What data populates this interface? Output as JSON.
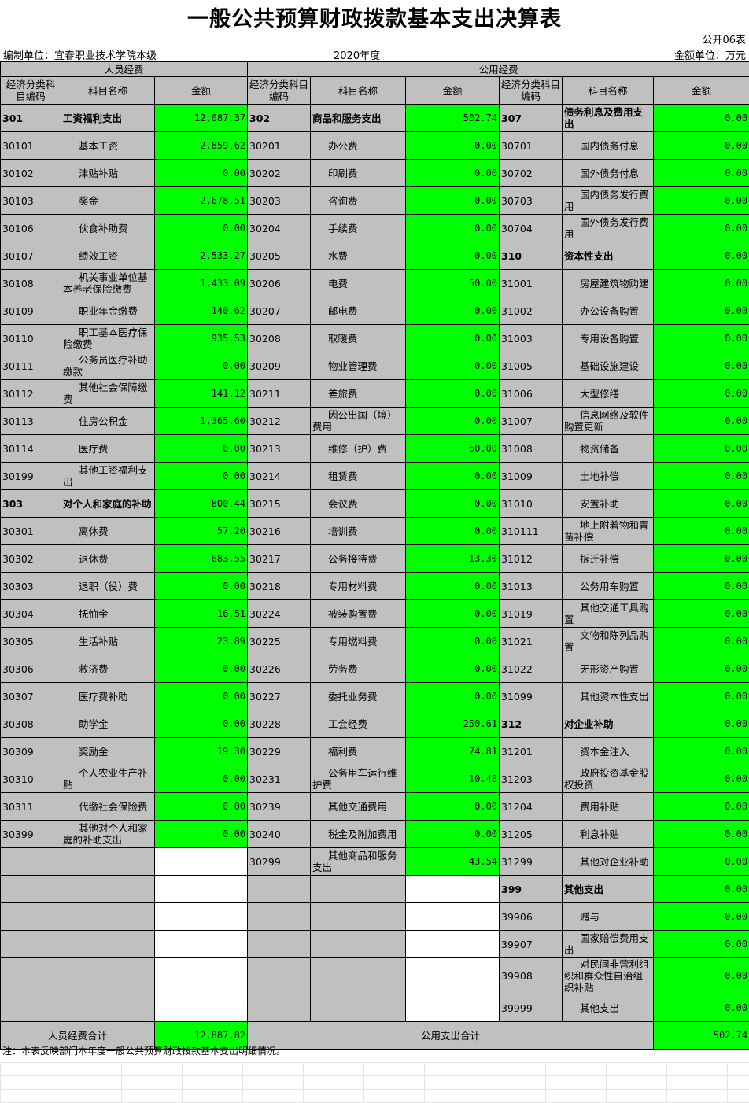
{
  "title": "一般公共预算财政拨款基本支出决算表",
  "form_no": "公开06表",
  "unit_org": "编制单位：宜春职业技术学院本级",
  "year": "2020年度",
  "unit": "金额单位：万元",
  "groups": {
    "personnel": "人员经费",
    "public": "公用经费"
  },
  "headers": {
    "code": "经济分类科目编码",
    "name": "科目名称",
    "amount": "金额"
  },
  "personnel": [
    [
      "301",
      "工资福利支出",
      "12,087.37",
      1
    ],
    [
      "30101",
      "基本工资",
      "2,859.62"
    ],
    [
      "30102",
      "津贴补贴",
      "0.00"
    ],
    [
      "30103",
      "奖金",
      "2,678.51"
    ],
    [
      "30106",
      "伙食补助费",
      "0.00"
    ],
    [
      "30107",
      "绩效工资",
      "2,533.27"
    ],
    [
      "30108",
      "机关事业单位基本养老保险缴费",
      "1,433.09"
    ],
    [
      "30109",
      "职业年金缴费",
      "140.62"
    ],
    [
      "30110",
      "职工基本医疗保险缴费",
      "935.53"
    ],
    [
      "30111",
      "公务员医疗补助缴款",
      "0.00"
    ],
    [
      "30112",
      "其他社会保障缴费",
      "141.12"
    ],
    [
      "30113",
      "住房公积金",
      "1,365.60"
    ],
    [
      "30114",
      "医疗费",
      "0.00"
    ],
    [
      "30199",
      "其他工资福利支出",
      "0.00"
    ],
    [
      "303",
      "对个人和家庭的补助",
      "800.44",
      1
    ],
    [
      "30301",
      "离休费",
      "57.20"
    ],
    [
      "30302",
      "退休费",
      "683.55"
    ],
    [
      "30303",
      "退职（役）费",
      "0.00"
    ],
    [
      "30304",
      "抚恤金",
      "16.51"
    ],
    [
      "30305",
      "生活补贴",
      "23.89"
    ],
    [
      "30306",
      "救济费",
      "0.00"
    ],
    [
      "30307",
      "医疗费补助",
      "0.00"
    ],
    [
      "30308",
      "助学金",
      "0.00"
    ],
    [
      "30309",
      "奖励金",
      "19.30"
    ],
    [
      "30310",
      "个人农业生产补贴",
      "0.00"
    ],
    [
      "30311",
      "代缴社会保险费",
      "0.00"
    ],
    [
      "30399",
      "其他对个人和家庭的补助支出",
      "0.00"
    ]
  ],
  "public_a": [
    [
      "302",
      "商品和服务支出",
      "502.74",
      1
    ],
    [
      "30201",
      "办公费",
      "0.00"
    ],
    [
      "30202",
      "印刷费",
      "0.00"
    ],
    [
      "30203",
      "咨询费",
      "0.00"
    ],
    [
      "30204",
      "手续费",
      "0.00"
    ],
    [
      "30205",
      "水费",
      "0.00"
    ],
    [
      "30206",
      "电费",
      "50.00"
    ],
    [
      "30207",
      "邮电费",
      "0.00"
    ],
    [
      "30208",
      "取暖费",
      "0.00"
    ],
    [
      "30209",
      "物业管理费",
      "0.00"
    ],
    [
      "30211",
      "差旅费",
      "0.00"
    ],
    [
      "30212",
      "因公出国（境）费用",
      "0.00"
    ],
    [
      "30213",
      "维修（护）费",
      "60.00"
    ],
    [
      "30214",
      "租赁费",
      "0.00"
    ],
    [
      "30215",
      "会议费",
      "0.00"
    ],
    [
      "30216",
      "培训费",
      "0.00"
    ],
    [
      "30217",
      "公务接待费",
      "13.30"
    ],
    [
      "30218",
      "专用材料费",
      "0.00"
    ],
    [
      "30224",
      "被装购置费",
      "0.00"
    ],
    [
      "30225",
      "专用燃料费",
      "0.00"
    ],
    [
      "30226",
      "劳务费",
      "0.00"
    ],
    [
      "30227",
      "委托业务费",
      "0.00"
    ],
    [
      "30228",
      "工会经费",
      "250.61"
    ],
    [
      "30229",
      "福利费",
      "74.81"
    ],
    [
      "30231",
      "公务用车运行维护费",
      "10.48"
    ],
    [
      "30239",
      "其他交通费用",
      "0.00"
    ],
    [
      "30240",
      "税金及附加费用",
      "0.00"
    ],
    [
      "30299",
      "其他商品和服务支出",
      "43.54"
    ]
  ],
  "public_b": [
    [
      "307",
      "债务利息及费用支出",
      "0.00",
      1
    ],
    [
      "30701",
      "国内债务付息",
      "0.00"
    ],
    [
      "30702",
      "国外债务付息",
      "0.00"
    ],
    [
      "30703",
      "国内债务发行费用",
      "0.00"
    ],
    [
      "30704",
      "国外债务发行费用",
      "0.00"
    ],
    [
      "310",
      "资本性支出",
      "0.00",
      1
    ],
    [
      "31001",
      "房屋建筑物购建",
      "0.00"
    ],
    [
      "31002",
      "办公设备购置",
      "0.00"
    ],
    [
      "31003",
      "专用设备购置",
      "0.00"
    ],
    [
      "31005",
      "基础设施建设",
      "0.00"
    ],
    [
      "31006",
      "大型修缮",
      "0.00"
    ],
    [
      "31007",
      "信息网络及软件购置更新",
      "0.00"
    ],
    [
      "31008",
      "物资储备",
      "0.00"
    ],
    [
      "31009",
      "土地补偿",
      "0.00"
    ],
    [
      "31010",
      "安置补助",
      "0.00"
    ],
    [
      "310111",
      "地上附着物和青苗补偿",
      "0.00"
    ],
    [
      "31012",
      "拆迁补偿",
      "0.00"
    ],
    [
      "31013",
      "公务用车购置",
      "0.00"
    ],
    [
      "31019",
      "其他交通工具购置",
      "0.00"
    ],
    [
      "31021",
      "文物和陈列品购置",
      "0.00"
    ],
    [
      "31022",
      "无形资产购置",
      "0.00"
    ],
    [
      "31099",
      "其他资本性支出",
      "0.00"
    ],
    [
      "312",
      "对企业补助",
      "0.00",
      1
    ],
    [
      "31201",
      "资本金注入",
      "0.00"
    ],
    [
      "31203",
      "政府投资基金股权投资",
      "0.00"
    ],
    [
      "31204",
      "费用补贴",
      "0.00"
    ],
    [
      "31205",
      "利息补贴",
      "0.00"
    ],
    [
      "31299",
      "其他对企业补助",
      "0.00"
    ],
    [
      "399",
      "其他支出",
      "0.00",
      1
    ],
    [
      "39906",
      "赠与",
      "0.00"
    ],
    [
      "39907",
      "国家赔偿费用支出",
      "0.00"
    ],
    [
      "39908",
      "对民间非营利组织和群众性自治组织补贴",
      "0.00"
    ],
    [
      "39999",
      "其他支出",
      "0.00"
    ]
  ],
  "totals": {
    "personnel_label": "人员经费合计",
    "personnel_value": "12,887.82",
    "public_label": "公用支出合计",
    "public_value": "502.74"
  },
  "note": "注：本表反映部门本年度一般公共预算财政拨款基本支出明细情况。",
  "colors": {
    "amount_bg": "#00ff00",
    "cell_bg": "#c0c0c0"
  }
}
